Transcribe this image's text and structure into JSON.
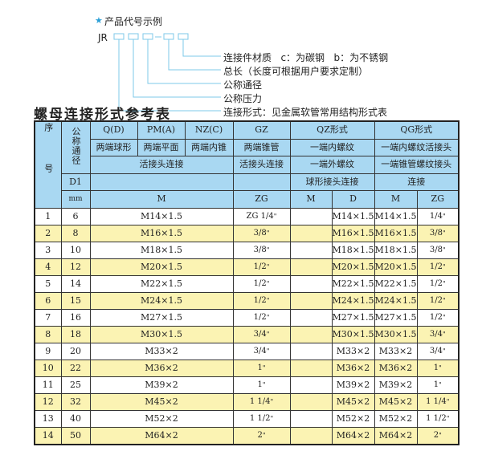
{
  "example": {
    "title": "产品代号示例",
    "code": "JR",
    "labels": [
      "连接件材质   c：为碳钢   b：为不锈钢",
      "总长（长度可根据用户要求定制）",
      "公称通径",
      "公称压力",
      "连接形式：见金属软管常用结构形式表"
    ],
    "accent": "#2a9fd6"
  },
  "title": "螺母连接形式参考表",
  "colors": {
    "header": "#a9d8f2",
    "row_alt": "#fbf3b3"
  },
  "header": {
    "seq": "序号",
    "dn": "公称通径",
    "d1": "D1",
    "mm": "mm",
    "row1": [
      "Q(D)",
      "PM(A)",
      "NZ(C)",
      "GZ",
      "QZ形式",
      "QG形式"
    ],
    "row2": [
      "两端球形",
      "两端平面",
      "两端内锥",
      "两端锥管",
      "一端内螺纹",
      "一端内螺纹活接头"
    ],
    "row3": [
      "活接头连接",
      "活接头连接",
      "一端外螺纹",
      "一端锥管螺纹接头"
    ],
    "row4": [
      "",
      "",
      "球形接头连接",
      "连接"
    ],
    "row5": [
      "M",
      "ZG",
      "M",
      "D",
      "M",
      "ZG"
    ]
  },
  "rows": [
    {
      "no": "1",
      "dn": "6",
      "m": "M14×1.5",
      "zg": "ZG 1/4",
      "qz_m": "",
      "qz_d": "M14×1.5",
      "qg_m": "M14×1.5",
      "qg_zg": "1/4"
    },
    {
      "no": "2",
      "dn": "8",
      "m": "M16×1.5",
      "zg": "3/8",
      "qz_m": "",
      "qz_d": "M16×1.5",
      "qg_m": "M16×1.5",
      "qg_zg": "3/8"
    },
    {
      "no": "3",
      "dn": "10",
      "m": "M18×1.5",
      "zg": "3/8",
      "qz_m": "",
      "qz_d": "M18×1.5",
      "qg_m": "M18×1.5",
      "qg_zg": "3/8"
    },
    {
      "no": "4",
      "dn": "12",
      "m": "M20×1.5",
      "zg": "1/2",
      "qz_m": "",
      "qz_d": "M20×1.5",
      "qg_m": "M20×1.5",
      "qg_zg": "1/2"
    },
    {
      "no": "5",
      "dn": "14",
      "m": "M22×1.5",
      "zg": "1/2",
      "qz_m": "",
      "qz_d": "M22×1.5",
      "qg_m": "M22×1.5",
      "qg_zg": "1/2"
    },
    {
      "no": "6",
      "dn": "15",
      "m": "M24×1.5",
      "zg": "1/2",
      "qz_m": "",
      "qz_d": "M24×1.5",
      "qg_m": "M24×1.5",
      "qg_zg": "1/2"
    },
    {
      "no": "7",
      "dn": "16",
      "m": "M27×1.5",
      "zg": "1/2",
      "qz_m": "",
      "qz_d": "M27×1.5",
      "qg_m": "M27×1.5",
      "qg_zg": "1/2"
    },
    {
      "no": "8",
      "dn": "18",
      "m": "M30×1.5",
      "zg": "3/4",
      "qz_m": "",
      "qz_d": "M30×1.5",
      "qg_m": "M30×1.5",
      "qg_zg": "3/4"
    },
    {
      "no": "9",
      "dn": "20",
      "m": "M33×2",
      "zg": "3/4",
      "qz_m": "",
      "qz_d": "M33×2",
      "qg_m": "M33×2",
      "qg_zg": "3/4"
    },
    {
      "no": "10",
      "dn": "22",
      "m": "M36×2",
      "zg": "1",
      "qz_m": "",
      "qz_d": "M36×2",
      "qg_m": "M36×2",
      "qg_zg": "1"
    },
    {
      "no": "11",
      "dn": "25",
      "m": "M39×2",
      "zg": "1",
      "qz_m": "",
      "qz_d": "M39×2",
      "qg_m": "M39×2",
      "qg_zg": "1"
    },
    {
      "no": "12",
      "dn": "32",
      "m": "M45×2",
      "zg": "1 1/4",
      "qz_m": "",
      "qz_d": "M45×2",
      "qg_m": "M45×2",
      "qg_zg": "1 1/4"
    },
    {
      "no": "13",
      "dn": "40",
      "m": "M52×2",
      "zg": "1 1/2",
      "qz_m": "",
      "qz_d": "M52×2",
      "qg_m": "M52×2",
      "qg_zg": "1 1/2"
    },
    {
      "no": "14",
      "dn": "50",
      "m": "M64×2",
      "zg": "2",
      "qz_m": "",
      "qz_d": "M64×2",
      "qg_m": "M64×2",
      "qg_zg": "2"
    }
  ]
}
